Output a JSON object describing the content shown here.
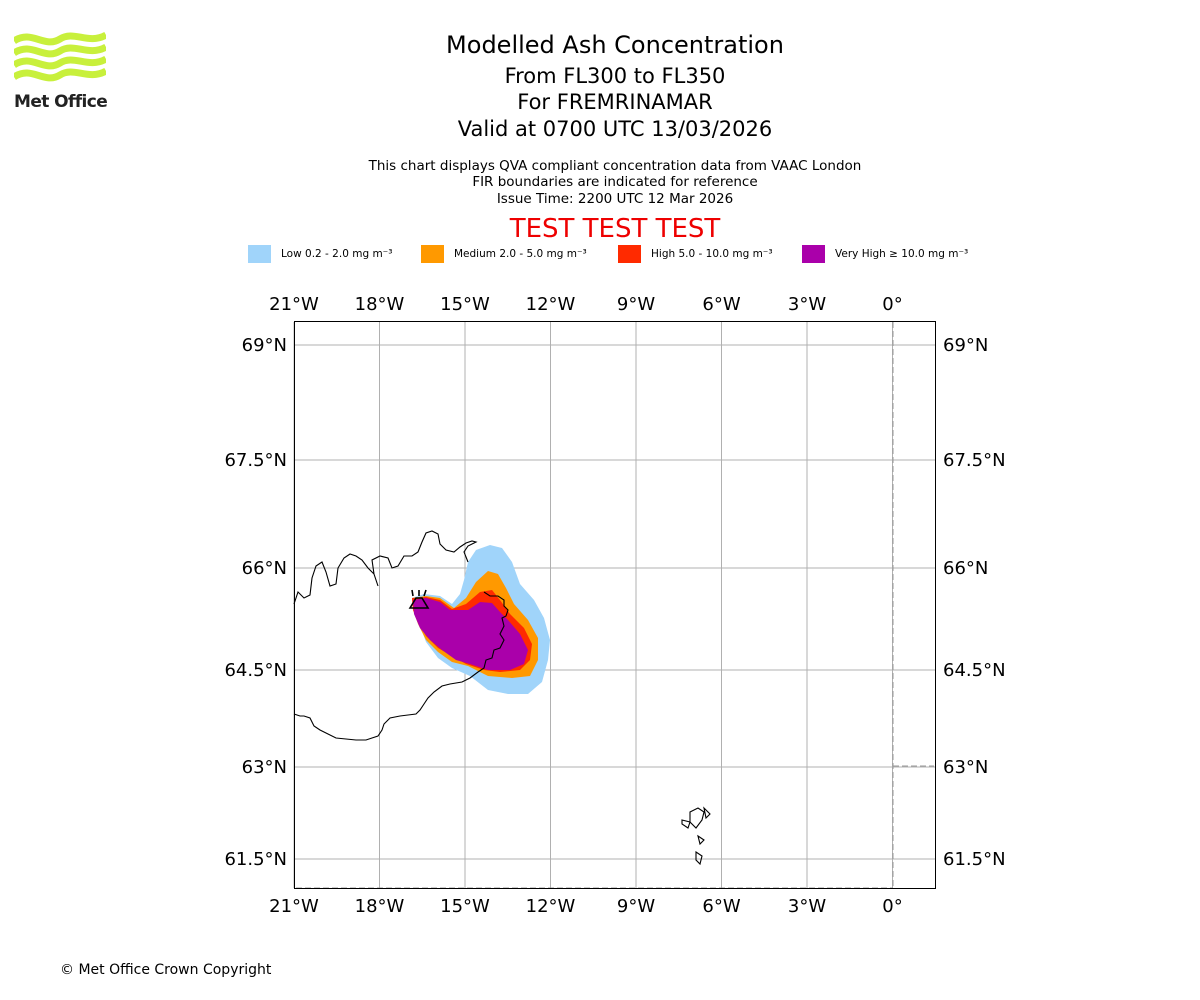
{
  "branding": {
    "logo_text": "Met Office",
    "logo_color": "#c8f03c"
  },
  "header": {
    "title": "Modelled Ash Concentration",
    "level_range": "From FL300 to FL350",
    "region": "For FREMRINAMAR",
    "valid_time": "Valid at 0700 UTC 13/03/2026",
    "description": "This chart displays QVA compliant concentration data from VAAC London",
    "fir_note": "FIR boundaries are indicated for reference",
    "issue_time": "Issue Time: 2200 UTC 12 Mar 2026",
    "test_banner": "TEST TEST TEST"
  },
  "legend": [
    {
      "label": "Low 0.2 - 2.0 mg m⁻³",
      "color": "#a0d4fa"
    },
    {
      "label": "Medium 2.0 - 5.0 mg m⁻³",
      "color": "#ff9900"
    },
    {
      "label": "High 5.0 - 10.0 mg m⁻³",
      "color": "#ff2a00"
    },
    {
      "label": "Very High  ≥  10.0 mg m⁻³",
      "color": "#aa00aa"
    }
  ],
  "map": {
    "lon_ticks": [
      "21°W",
      "18°W",
      "15°W",
      "12°W",
      "9°W",
      "6°W",
      "3°W",
      "0°"
    ],
    "lat_ticks": [
      "69°N",
      "67.5°N",
      "66°N",
      "64.5°N",
      "63°N",
      "61.5°N"
    ],
    "lon_range": [
      -21,
      1.5
    ],
    "lat_range": [
      61.1,
      69.3
    ],
    "volcano_marker": "volcano-icon",
    "ash_levels": [
      "Low",
      "Medium",
      "High",
      "Very High"
    ]
  },
  "footer": {
    "copyright": "© Met Office Crown Copyright"
  }
}
